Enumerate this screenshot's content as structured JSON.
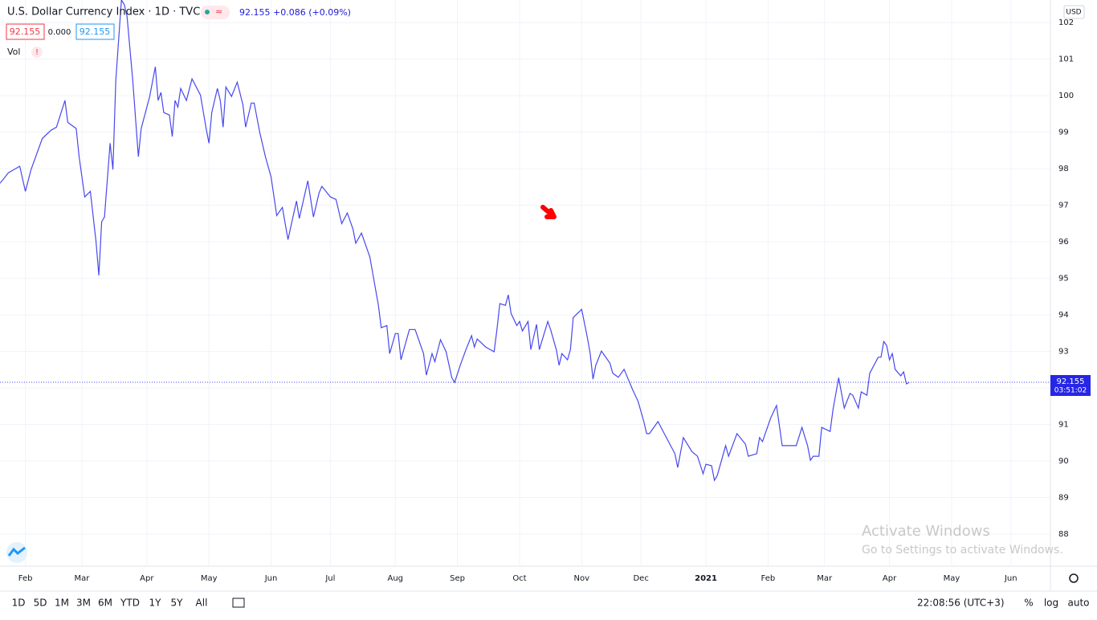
{
  "chart_data": {
    "type": "line",
    "title": "U.S. Dollar Currency Index · 1D · TVC",
    "series": [
      {
        "name": "U.S. Dollar Currency Index",
        "color": "#4848ee",
        "x": [
          0,
          3,
          7,
          9,
          11,
          15,
          18,
          20,
          23,
          24,
          27,
          28,
          30,
          32,
          34,
          35,
          36,
          37,
          39,
          40,
          41,
          43,
          44,
          45,
          47,
          49,
          50,
          53,
          55,
          56,
          57,
          58,
          60,
          61,
          62,
          63,
          64,
          66,
          68,
          71,
          73,
          74,
          75,
          77,
          78,
          79,
          80,
          82,
          84,
          86,
          87,
          89,
          90,
          92,
          94,
          96,
          98,
          100,
          102,
          105,
          106,
          109,
          111,
          113,
          114,
          117,
          119,
          121,
          123,
          125,
          126,
          128,
          129,
          131,
          132,
          134,
          135,
          137,
          138,
          140,
          141,
          142,
          145,
          147,
          150,
          151,
          153,
          154,
          156,
          158,
          160,
          161,
          163,
          165,
          167,
          168,
          169,
          172,
          175,
          176,
          177,
          179,
          180,
          181,
          183,
          184,
          185,
          187,
          188,
          190,
          191,
          194,
          195,
          197,
          198,
          199,
          201,
          202,
          203,
          206,
          208,
          209,
          210,
          211,
          213,
          216,
          217,
          219,
          221,
          224,
          226,
          228,
          229,
          230,
          233,
          236,
          239,
          240,
          242,
          245,
          247,
          249,
          250,
          252,
          253,
          254,
          257,
          258,
          261,
          264,
          265,
          268,
          269,
          270,
          273,
          275,
          276,
          277,
          282,
          284,
          286,
          287,
          288,
          290,
          291,
          294,
          295,
          297,
          299,
          301,
          302,
          304,
          305,
          307,
          308,
          311,
          312,
          313,
          314,
          315,
          316,
          317,
          319,
          320,
          321,
          322
        ],
        "values": [
          97.6,
          97.89,
          98.07,
          97.38,
          97.98,
          98.83,
          99.05,
          99.14,
          99.87,
          99.27,
          99.1,
          98.33,
          97.23,
          97.38,
          96.02,
          95.08,
          96.55,
          96.68,
          98.7,
          97.98,
          100.42,
          102.62,
          102.5,
          102.17,
          100.42,
          98.33,
          99.1,
          99.98,
          100.79,
          99.87,
          100.09,
          99.54,
          99.47,
          98.88,
          99.87,
          99.69,
          100.2,
          99.87,
          100.46,
          100.02,
          99.1,
          98.7,
          99.54,
          100.2,
          99.87,
          99.14,
          100.24,
          99.98,
          100.37,
          99.76,
          99.14,
          99.8,
          99.8,
          98.99,
          98.33,
          97.78,
          96.72,
          96.94,
          96.06,
          97.12,
          96.64,
          97.67,
          96.68,
          97.34,
          97.52,
          97.23,
          97.16,
          96.5,
          96.79,
          96.35,
          95.96,
          96.24,
          96.02,
          95.58,
          95.14,
          94.26,
          93.65,
          93.71,
          92.94,
          93.49,
          93.49,
          92.77,
          93.6,
          93.6,
          92.94,
          92.35,
          92.94,
          92.72,
          93.32,
          92.99,
          92.28,
          92.15,
          92.62,
          93.05,
          93.43,
          93.12,
          93.34,
          93.12,
          92.99,
          93.6,
          94.31,
          94.26,
          94.55,
          94.04,
          93.71,
          93.82,
          93.56,
          93.82,
          93.05,
          93.74,
          93.05,
          93.82,
          93.6,
          93.05,
          92.62,
          92.94,
          92.77,
          93.05,
          93.93,
          94.15,
          93.38,
          92.94,
          92.24,
          92.62,
          93.01,
          92.68,
          92.4,
          92.29,
          92.51,
          91.96,
          91.63,
          91.08,
          90.75,
          90.75,
          91.08,
          90.64,
          90.2,
          89.82,
          90.64,
          90.26,
          90.13,
          89.65,
          89.91,
          89.87,
          89.47,
          89.6,
          90.42,
          90.13,
          90.75,
          90.46,
          90.13,
          90.2,
          90.64,
          90.53,
          91.19,
          91.52,
          90.97,
          90.42,
          90.42,
          90.92,
          90.42,
          90.02,
          90.13,
          90.13,
          90.92,
          90.81,
          91.41,
          92.28,
          91.45,
          91.85,
          91.8,
          91.45,
          91.89,
          91.8,
          92.4,
          92.84,
          92.84,
          93.27,
          93.16,
          92.77,
          92.94,
          92.51,
          92.33,
          92.44,
          92.11,
          92.155
        ]
      }
    ],
    "xlim": [
      0,
      372
    ],
    "xticks": [
      {
        "value": 9,
        "label": "Feb"
      },
      {
        "value": 29,
        "label": "Mar"
      },
      {
        "value": 52,
        "label": "Apr"
      },
      {
        "value": 74,
        "label": "May"
      },
      {
        "value": 96,
        "label": "Jun"
      },
      {
        "value": 117,
        "label": "Jul"
      },
      {
        "value": 140,
        "label": "Aug"
      },
      {
        "value": 162,
        "label": "Sep"
      },
      {
        "value": 184,
        "label": "Oct"
      },
      {
        "value": 206,
        "label": "Nov"
      },
      {
        "value": 227,
        "label": "Dec"
      },
      {
        "value": 250,
        "label": "2021"
      },
      {
        "value": 272,
        "label": "Feb"
      },
      {
        "value": 292,
        "label": "Mar"
      },
      {
        "value": 315,
        "label": "Apr"
      },
      {
        "value": 337,
        "label": "May"
      },
      {
        "value": 358,
        "label": "Jun"
      }
    ],
    "ylim": [
      87.12,
      102.62
    ],
    "yticks": [
      88,
      89,
      90,
      91,
      92,
      93,
      94,
      95,
      96,
      97,
      98,
      99,
      100,
      101,
      102
    ],
    "grid": true,
    "axis_side": "right"
  },
  "ui": {
    "quote": "92.155 +0.086 (+0.09%)",
    "bid": "92.155",
    "spread": "0.000",
    "ask": "92.155",
    "vol": "Vol",
    "currency": "USD",
    "last_price": "92.155",
    "countdown": "03:51:02",
    "ranges": [
      "1D",
      "5D",
      "1M",
      "3M",
      "6M",
      "YTD",
      "1Y",
      "5Y",
      "All"
    ],
    "clock": "22:08:56 (UTC+3)",
    "percent": "%",
    "log": "log",
    "auto": "auto",
    "watermark_title": "Activate Windows",
    "watermark_text": "Go to Settings to activate Windows."
  }
}
